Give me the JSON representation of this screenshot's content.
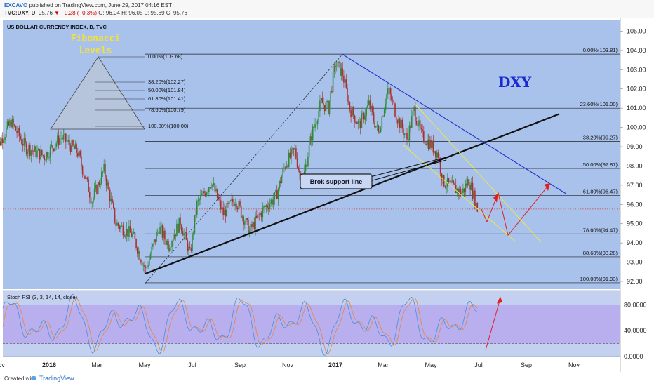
{
  "header": {
    "author": "EXCAVO",
    "published": "published on TradingView.com, June 29, 2017 04:16 EST",
    "symbol": "TVC:DXY, D",
    "close_value": "95.76",
    "change": "▼ −0.28 (−0.3%)",
    "ohlc": "O: 96.04  H: 96.05  L: 95.69  C: 95.76"
  },
  "chart_data": {
    "type": "candlestick",
    "title": "US DOLLAR CURRENCY INDEX, D, TVC",
    "symbol_label": "DXY",
    "x_ticks": [
      "ov",
      "2016",
      "Mar",
      "May",
      "Jul",
      "Sep",
      "Nov",
      "2017",
      "Mar",
      "May",
      "Jul",
      "Sep",
      "Nov"
    ],
    "x_tick_months": [
      -2,
      0,
      2,
      4,
      6,
      8,
      10,
      12,
      14,
      16,
      18,
      20,
      22
    ],
    "y_ticks": [
      "105.00",
      "104.00",
      "103.00",
      "102.00",
      "101.00",
      "100.00",
      "99.00",
      "98.00",
      "97.00",
      "96.00",
      "95.00",
      "94.00",
      "93.00",
      "92.00"
    ],
    "ylim": [
      91.6,
      105.6
    ],
    "current_price": 95.76,
    "price_path": [
      {
        "m": -2.3,
        "v": 98.7
      },
      {
        "m": -1.6,
        "v": 100.3
      },
      {
        "m": -1.0,
        "v": 99.0
      },
      {
        "m": -0.2,
        "v": 98.5
      },
      {
        "m": 0.5,
        "v": 99.5
      },
      {
        "m": 1.2,
        "v": 98.7
      },
      {
        "m": 1.8,
        "v": 96.2
      },
      {
        "m": 2.3,
        "v": 97.8
      },
      {
        "m": 2.8,
        "v": 95.0
      },
      {
        "m": 3.5,
        "v": 94.4
      },
      {
        "m": 4.05,
        "v": 92.6
      },
      {
        "m": 4.6,
        "v": 94.8
      },
      {
        "m": 5.0,
        "v": 93.9
      },
      {
        "m": 5.5,
        "v": 95.1
      },
      {
        "m": 5.9,
        "v": 93.4
      },
      {
        "m": 6.2,
        "v": 96.0
      },
      {
        "m": 6.8,
        "v": 97.2
      },
      {
        "m": 7.3,
        "v": 95.5
      },
      {
        "m": 7.8,
        "v": 96.3
      },
      {
        "m": 8.4,
        "v": 94.6
      },
      {
        "m": 9.0,
        "v": 95.8
      },
      {
        "m": 9.5,
        "v": 96.4
      },
      {
        "m": 9.9,
        "v": 98.1
      },
      {
        "m": 10.3,
        "v": 98.8
      },
      {
        "m": 10.6,
        "v": 97.0
      },
      {
        "m": 11.0,
        "v": 99.6
      },
      {
        "m": 11.4,
        "v": 101.3
      },
      {
        "m": 11.7,
        "v": 101.0
      },
      {
        "m": 12.0,
        "v": 103.3
      },
      {
        "m": 12.3,
        "v": 102.8
      },
      {
        "m": 12.6,
        "v": 101.0
      },
      {
        "m": 13.0,
        "v": 100.1
      },
      {
        "m": 13.4,
        "v": 101.2
      },
      {
        "m": 13.8,
        "v": 99.7
      },
      {
        "m": 14.2,
        "v": 102.0
      },
      {
        "m": 14.6,
        "v": 100.5
      },
      {
        "m": 15.0,
        "v": 99.4
      },
      {
        "m": 15.3,
        "v": 100.9
      },
      {
        "m": 15.6,
        "v": 99.6
      },
      {
        "m": 16.0,
        "v": 99.1
      },
      {
        "m": 16.3,
        "v": 98.6
      },
      {
        "m": 16.5,
        "v": 97.2
      },
      {
        "m": 16.9,
        "v": 96.9
      },
      {
        "m": 17.3,
        "v": 96.6
      },
      {
        "m": 17.6,
        "v": 97.3
      },
      {
        "m": 17.95,
        "v": 95.76
      }
    ],
    "fibonacci": [
      {
        "label": "0.00%(103.81)",
        "value": 103.81
      },
      {
        "label": "23.60%(101.00)",
        "value": 101.0
      },
      {
        "label": "38.20%(99.27)",
        "value": 99.27
      },
      {
        "label": "50.00%(97.87)",
        "value": 97.87
      },
      {
        "label": "61.80%(96.47)",
        "value": 96.47
      },
      {
        "label": "78.60%(94.47)",
        "value": 94.47
      },
      {
        "label": "88.60%(93.28)",
        "value": 93.28
      },
      {
        "label": "100.00%(91.93)",
        "value": 91.93
      }
    ],
    "fib_legend": {
      "title_line1": "Fibonacci",
      "title_line2": "Levels",
      "levels": [
        "0.00%(103.68)",
        "38.20%(102.27)",
        "50.00%(101.84)",
        "61.80%(101.41)",
        "78.60%(100.79)",
        "100.00%(100.00)"
      ]
    },
    "annotation": "Brok support line",
    "rsi": {
      "title": "Stoch RSI (3, 3, 14, 14, close)",
      "y_ticks": [
        "80.0000",
        "40.0000",
        "0.0000"
      ],
      "ylim": [
        0,
        100
      ],
      "bands": [
        20,
        80
      ]
    },
    "colors": {
      "background": "#a9c2ec",
      "bull": "#2e8b3a",
      "bear": "#a8322f",
      "fib_line": "#222222",
      "trend_line": "#111111",
      "resistance": "#2233cc",
      "channel": "#e8e84a",
      "projection": "#e02020",
      "rsi_band": "#b7a4ee",
      "rsi_k": "#4a8ed8",
      "rsi_d": "#e8843a",
      "dxy_label": "#1a2ad0",
      "fib_title": "#f0e040"
    }
  },
  "footer": {
    "created_with": "Created with",
    "brand": "TradingView"
  }
}
